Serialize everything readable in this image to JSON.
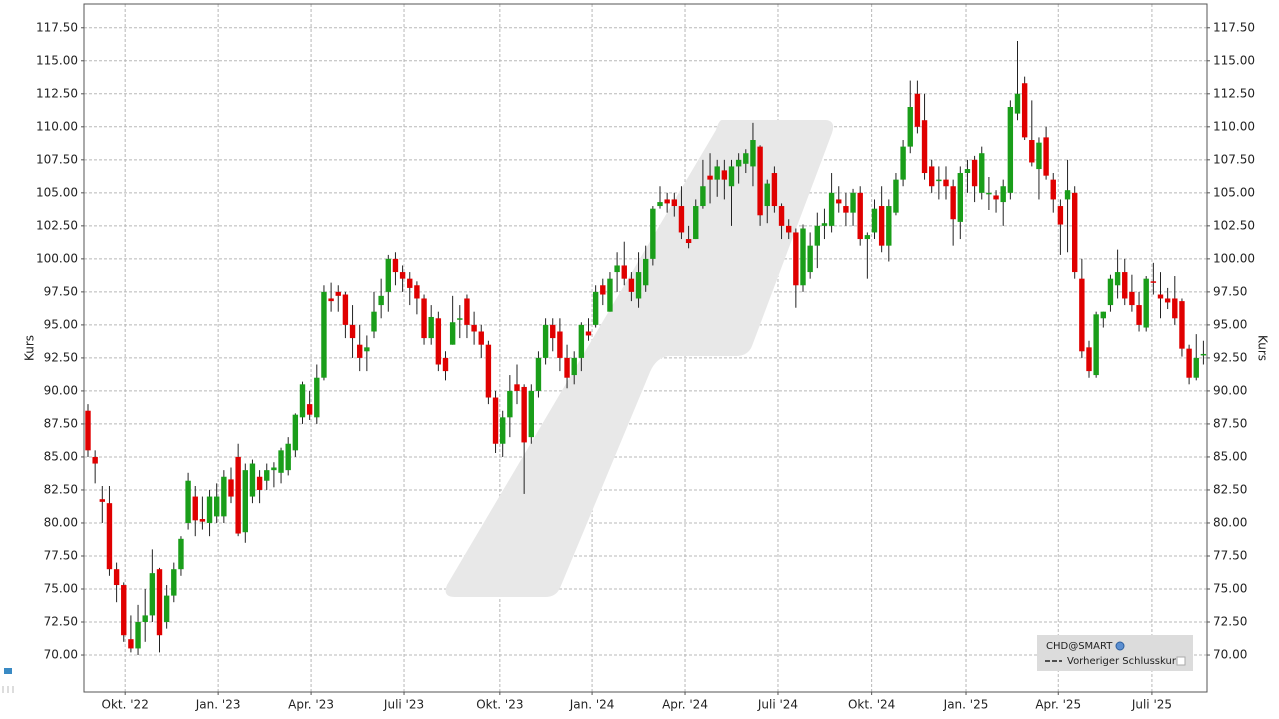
{
  "chart_data": {
    "type": "candlestick",
    "y_label": "Kurs",
    "up_color": "#1a9e1a",
    "down_color": "#e00000",
    "grid": true,
    "ylim": [
      67.2,
      119.3
    ],
    "yticks": [
      {
        "value": 70,
        "label": "70.00"
      },
      {
        "value": 72.5,
        "label": "72.50"
      },
      {
        "value": 75,
        "label": "75.00"
      },
      {
        "value": 77.5,
        "label": "77.50"
      },
      {
        "value": 80,
        "label": "80.00"
      },
      {
        "value": 82.5,
        "label": "82.50"
      },
      {
        "value": 85,
        "label": "85.00"
      },
      {
        "value": 87.5,
        "label": "87.50"
      },
      {
        "value": 90,
        "label": "90.00"
      },
      {
        "value": 92.5,
        "label": "92.50"
      },
      {
        "value": 95,
        "label": "95.00"
      },
      {
        "value": 97.5,
        "label": "97.50"
      },
      {
        "value": 100,
        "label": "100.00"
      },
      {
        "value": 102.5,
        "label": "102.50"
      },
      {
        "value": 105,
        "label": "105.00"
      },
      {
        "value": 107.5,
        "label": "107.50"
      },
      {
        "value": 110,
        "label": "110.00"
      },
      {
        "value": 112.5,
        "label": "112.50"
      },
      {
        "value": 115,
        "label": "115.00"
      },
      {
        "value": 117.5,
        "label": "117.50"
      }
    ],
    "xticks": [
      {
        "value": 5.2,
        "label": "Okt. '22"
      },
      {
        "value": 18.2,
        "label": "Jan. '23"
      },
      {
        "value": 31.2,
        "label": "Apr. '23"
      },
      {
        "value": 44.2,
        "label": "Juli '23"
      },
      {
        "value": 57.6,
        "label": "Okt. '23"
      },
      {
        "value": 70.5,
        "label": "Jan. '24"
      },
      {
        "value": 83.5,
        "label": "Apr. '24"
      },
      {
        "value": 96.5,
        "label": "Juli '24"
      },
      {
        "value": 109.6,
        "label": "Okt. '24"
      },
      {
        "value": 122.8,
        "label": "Jan. '25"
      },
      {
        "value": 135.7,
        "label": "Apr. '25"
      },
      {
        "value": 148.8,
        "label": "Juli '25"
      }
    ],
    "series": [
      {
        "name": "CHD@SMART",
        "open": [
          88.5,
          85,
          81.8,
          81.5,
          76.5,
          75.3,
          71.2,
          70.5,
          72.5,
          73,
          76.5,
          72.5,
          74.5,
          76.5,
          80,
          82,
          80.3,
          80,
          80.5,
          80.5,
          83.3,
          85,
          79.3,
          82,
          83.5,
          83.2,
          84,
          83.8,
          84,
          85.5,
          88,
          89,
          88,
          91,
          97,
          97.5,
          97.3,
          95,
          93.5,
          93,
          94.5,
          96.5,
          97.5,
          100,
          99,
          98.5,
          98,
          97,
          94,
          95.5,
          92.5,
          93.5,
          95.5,
          97,
          95,
          94.5,
          93.5,
          89.5,
          86,
          88,
          90.5,
          90.3,
          86.5,
          90,
          92.5,
          95,
          94.5,
          92.5,
          91.2,
          92.5,
          94.5,
          95,
          98,
          96,
          99,
          99.5,
          98.5,
          97,
          98,
          100,
          104,
          104.5,
          104.5,
          104,
          101.5,
          101.5,
          104,
          106.3,
          106,
          106.7,
          105.5,
          107,
          107.2,
          107,
          108.5,
          104,
          106.5,
          104,
          102.5,
          102,
          98,
          99,
          101,
          102.5,
          102.5,
          104.5,
          104,
          103.5,
          105,
          101.5,
          102,
          104,
          101,
          103.5,
          106,
          108.5,
          112.5,
          110.5,
          107,
          106,
          106,
          105.5,
          102.8,
          106.5,
          107.5,
          105,
          105,
          104.8,
          104.3,
          105,
          111,
          113.3,
          109,
          106.8,
          109.2,
          106,
          104,
          104.5,
          105,
          98.5,
          93.3,
          91.2,
          95.5,
          96.5,
          98,
          99,
          97.5,
          96.5,
          94.8,
          98.3,
          97.3,
          97,
          97,
          96.8,
          93.2,
          91,
          92.7
        ],
        "high": [
          89,
          85.5,
          82.8,
          82.8,
          77,
          75.5,
          73,
          73.8,
          75,
          78,
          76.6,
          75.3,
          77,
          79,
          83.8,
          82.8,
          82,
          82.5,
          83,
          84,
          84.2,
          86,
          84.5,
          84.8,
          84,
          84.5,
          84.6,
          85.7,
          86.5,
          88.3,
          90.7,
          90,
          92,
          98,
          98.2,
          98,
          97.5,
          96.5,
          95,
          94.2,
          97.5,
          98.5,
          100.3,
          100.5,
          99.5,
          99,
          98.3,
          97.3,
          96.5,
          96,
          93,
          97.2,
          96.5,
          97.3,
          96,
          95,
          93.8,
          90,
          88.5,
          91.2,
          92,
          90.5,
          90.5,
          93,
          95.5,
          95.5,
          95.5,
          93.5,
          93,
          95.2,
          95.5,
          98,
          98.5,
          99,
          100.5,
          101.3,
          99,
          100.5,
          101,
          104,
          105.5,
          105,
          105,
          105.5,
          102.5,
          104.5,
          107.5,
          108,
          107.5,
          107.5,
          107.5,
          108,
          108.3,
          110.3,
          108.6,
          106,
          107,
          104.2,
          103,
          102.3,
          102.6,
          102,
          103.5,
          103.8,
          106.5,
          105.5,
          105,
          105.3,
          105.5,
          102,
          104.5,
          105.5,
          104.5,
          106.5,
          109,
          113.5,
          113.5,
          112.5,
          107.5,
          107,
          107,
          106,
          107,
          107.5,
          107.8,
          108.5,
          106.2,
          105.2,
          106,
          112,
          116.5,
          113.8,
          112,
          109.2,
          110,
          106.5,
          104.5,
          107.5,
          105.5,
          100,
          93.8,
          96,
          96,
          98.8,
          100.7,
          100,
          98.8,
          97.5,
          98.7,
          99.7,
          99,
          97.8,
          98.7,
          97,
          93.5,
          94.3,
          93.8
        ],
        "low": [
          85,
          83,
          80,
          76,
          74,
          71,
          70.2,
          70,
          71,
          72.5,
          70.2,
          72,
          74,
          76,
          79.5,
          79,
          79.5,
          79,
          80,
          80,
          81.5,
          79,
          78.5,
          81.5,
          81.5,
          82.5,
          82.7,
          83,
          83.6,
          85,
          87.5,
          87.8,
          87.5,
          90.8,
          96,
          96,
          94,
          92.5,
          91.5,
          91.5,
          94,
          95.5,
          96,
          98,
          97.5,
          96.5,
          95.8,
          93.5,
          93.5,
          91.5,
          90.8,
          93.5,
          94,
          94,
          93.5,
          92.5,
          89,
          85.3,
          85,
          86.5,
          89,
          82.2,
          86,
          89.5,
          92,
          93,
          91.5,
          90.2,
          90.5,
          91.5,
          93.8,
          94.8,
          96.5,
          96,
          97.5,
          98,
          96.8,
          96.3,
          97.5,
          99.5,
          103.8,
          103.5,
          103.2,
          101.5,
          100.8,
          101.5,
          103.8,
          104.2,
          104.7,
          104.5,
          102.5,
          105.7,
          106.5,
          105.5,
          102.5,
          102.7,
          103.5,
          101.5,
          101.5,
          96.3,
          97.5,
          98.5,
          99.3,
          101.5,
          102,
          103.5,
          102.5,
          102.5,
          101,
          98.5,
          101.5,
          100.5,
          99.8,
          103.3,
          105.5,
          108,
          109.5,
          106,
          105,
          104.5,
          104.5,
          101,
          101.5,
          105,
          104.3,
          104.5,
          103.7,
          103.5,
          102.5,
          104.5,
          110.5,
          109,
          107,
          104.5,
          106,
          103.5,
          100.3,
          100.5,
          98.5,
          92.5,
          91,
          91,
          94.8,
          96,
          97,
          96.5,
          96,
          94.5,
          94.5,
          97.3,
          95.5,
          96.2,
          95,
          92.6,
          90.5,
          90.8,
          92
        ],
        "close": [
          85.5,
          84.5,
          81.6,
          76.5,
          75.3,
          71.5,
          70.5,
          72.5,
          73,
          76.2,
          71.5,
          74.5,
          76.5,
          78.8,
          83.2,
          80.2,
          80.1,
          82,
          82,
          83.5,
          82,
          79.2,
          84,
          84.5,
          82.5,
          84,
          84.2,
          85.5,
          86,
          88.2,
          90.5,
          88.2,
          91,
          97.5,
          96.8,
          97.2,
          95,
          94,
          92.5,
          93.3,
          96,
          97.2,
          100,
          99,
          98.5,
          97.8,
          97,
          94,
          95.6,
          92,
          91.5,
          95.2,
          95.5,
          95,
          94.5,
          93.5,
          89.5,
          86,
          88,
          90,
          90,
          86.1,
          90,
          92.5,
          95,
          94,
          92.5,
          91,
          92.5,
          95,
          94.2,
          97.5,
          97.3,
          98.5,
          99.5,
          98.5,
          97.5,
          99,
          100,
          103.8,
          104.3,
          104.2,
          104,
          102,
          101.2,
          104,
          105.5,
          106,
          107,
          106,
          107,
          107.5,
          108,
          109,
          103.3,
          105.7,
          104,
          102.5,
          102,
          98,
          102.3,
          101,
          102.5,
          102.7,
          105,
          104.2,
          103.5,
          105,
          101.5,
          101.8,
          103.8,
          101,
          104,
          106,
          108.5,
          111.5,
          110,
          106.5,
          105.5,
          106,
          105.5,
          103,
          106.5,
          106.8,
          105.5,
          108,
          105,
          104.5,
          105.5,
          111.5,
          112.5,
          109.2,
          107.3,
          108.8,
          106.3,
          104.5,
          102.6,
          105.2,
          99,
          93,
          91.5,
          95.8,
          96,
          98.5,
          99,
          97,
          96.5,
          95,
          98.5,
          98.2,
          97,
          96.7,
          95.5,
          93.2,
          91,
          92.5,
          92.8
        ]
      }
    ],
    "reference_line_label": "Vorheriger Schlusskurs"
  }
}
